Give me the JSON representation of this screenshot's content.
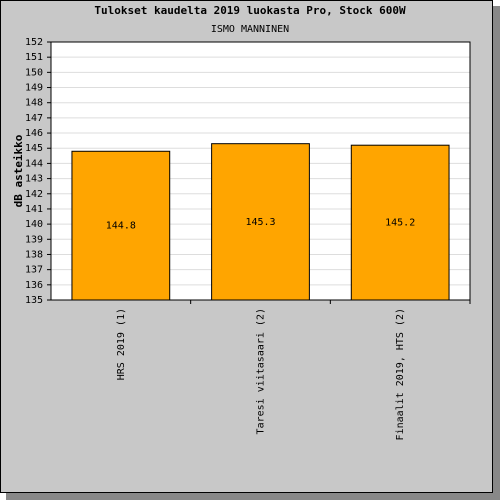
{
  "chart_data": {
    "type": "bar",
    "title": "Tulokset kaudelta 2019 luokasta Pro, Stock 600W",
    "subtitle": "ISMO MANNINEN",
    "y_label": "dB asteikko",
    "categories": [
      "HRS 2019 (1)",
      "Taresi viitasaari (2)",
      "Finaalit 2019, HTS (2)"
    ],
    "values": [
      144.8,
      145.3,
      145.2
    ],
    "value_labels": [
      "144.8",
      "145.3",
      "145.2"
    ],
    "color": "#ffa500",
    "ylim": [
      135,
      152
    ],
    "yticks": [
      135,
      136,
      137,
      138,
      139,
      140,
      141,
      142,
      143,
      144,
      145,
      146,
      147,
      148,
      149,
      150,
      151,
      152
    ],
    "grid": true
  }
}
